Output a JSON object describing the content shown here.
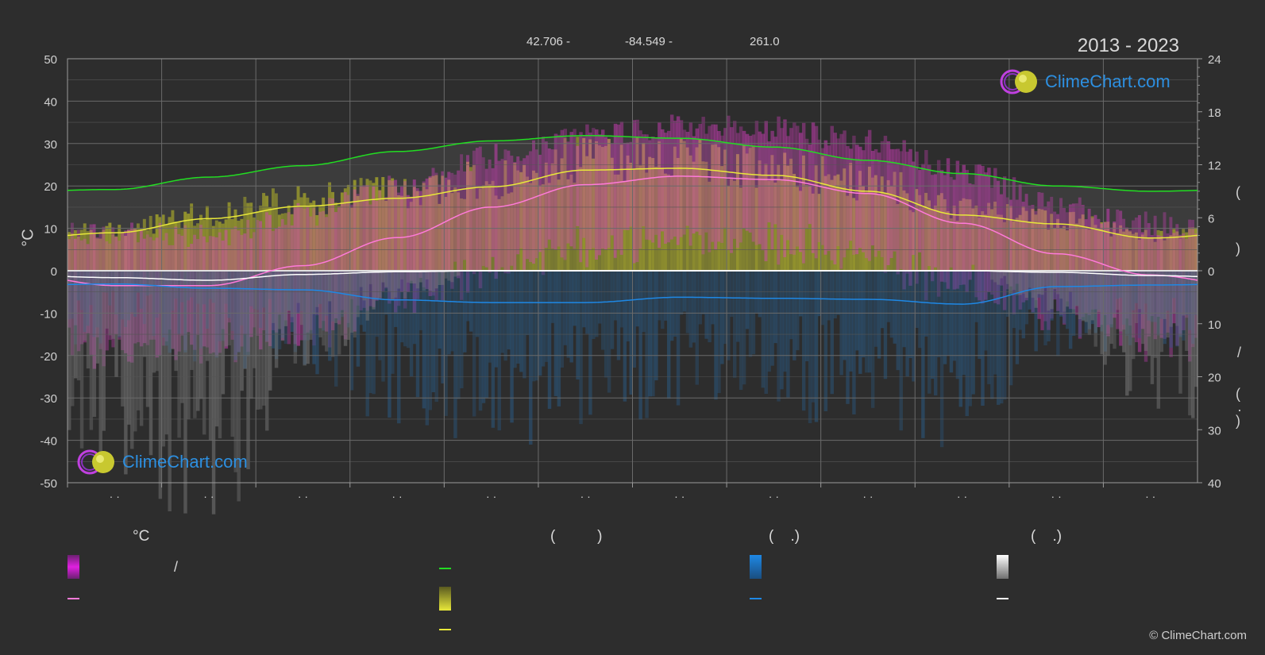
{
  "header": {
    "lat": "42.706 -",
    "lon": "-84.549 -",
    "elev": "261.0",
    "period": "2013 - 2023"
  },
  "logo_text": "ClimeChart.com",
  "copyright": "© ClimeChart.com",
  "left_axis_label": "°C",
  "right_axis_glyphs": {
    "upper_a": "(",
    "upper_b": ")",
    "lower_a": "/",
    "lower_b": "(",
    "lower_c": "·",
    "lower_d": ")"
  },
  "legend": {
    "col1_title": "°C",
    "col2_title": "(          )",
    "col3_title": "(    .)",
    "col4_title": "(    .)",
    "col1_slash": "/"
  },
  "colors": {
    "background": "#2d2d2d",
    "daylight": "#22dd22",
    "sunshine": "#e8e83a",
    "temp_mean": "#ff7ad9",
    "temp_band": "#e040c8",
    "sunshine_fill": "#a8a82a",
    "precip": "#1e88e5",
    "snow": "#ffffff",
    "grid": "#6a6a6a"
  },
  "chart_data": {
    "type": "area",
    "x_ticks": [
      "· ·",
      "· ·",
      "· ·",
      "· ·",
      "· ·",
      "· ·",
      "· ·",
      "· ·",
      "· ·",
      "· ·",
      "· ·",
      "· ·"
    ],
    "y_left": {
      "label": "°C",
      "ylim": [
        -50,
        50
      ],
      "ticks": [
        50,
        40,
        30,
        20,
        10,
        0,
        -10,
        -20,
        -30,
        -40,
        -50
      ]
    },
    "y_right_upper": {
      "ylim": [
        0,
        24
      ],
      "ticks": [
        24,
        18,
        12,
        6,
        0
      ]
    },
    "y_right_lower": {
      "ylim": [
        0,
        40
      ],
      "ticks": [
        0,
        10,
        20,
        30,
        40
      ]
    },
    "grid": true,
    "series": [
      {
        "key": "daylight",
        "values": [
          9.2,
          10.6,
          11.9,
          13.5,
          14.7,
          15.3,
          15.0,
          14.0,
          12.5,
          11.0,
          9.6,
          9.0
        ]
      },
      {
        "key": "sunshine",
        "values": [
          4.3,
          5.9,
          7.3,
          8.2,
          9.5,
          11.4,
          11.6,
          10.8,
          9.0,
          6.3,
          5.3,
          3.7
        ]
      },
      {
        "key": "temp_mean",
        "values": [
          -3.5,
          -3.5,
          1.2,
          7.8,
          15.0,
          20.3,
          22.3,
          21.5,
          18.2,
          11.2,
          4.0,
          -1.0
        ]
      },
      {
        "key": "precip",
        "values": [
          2.5,
          3.3,
          3.6,
          5.5,
          6.0,
          6.0,
          5.0,
          5.2,
          5.4,
          6.3,
          3.0,
          2.7
        ]
      },
      {
        "key": "snow",
        "values": [
          1.3,
          1.8,
          0.7,
          0.2,
          0.0,
          0.0,
          0.0,
          0.0,
          0.0,
          0.0,
          0.3,
          0.9
        ]
      }
    ]
  }
}
